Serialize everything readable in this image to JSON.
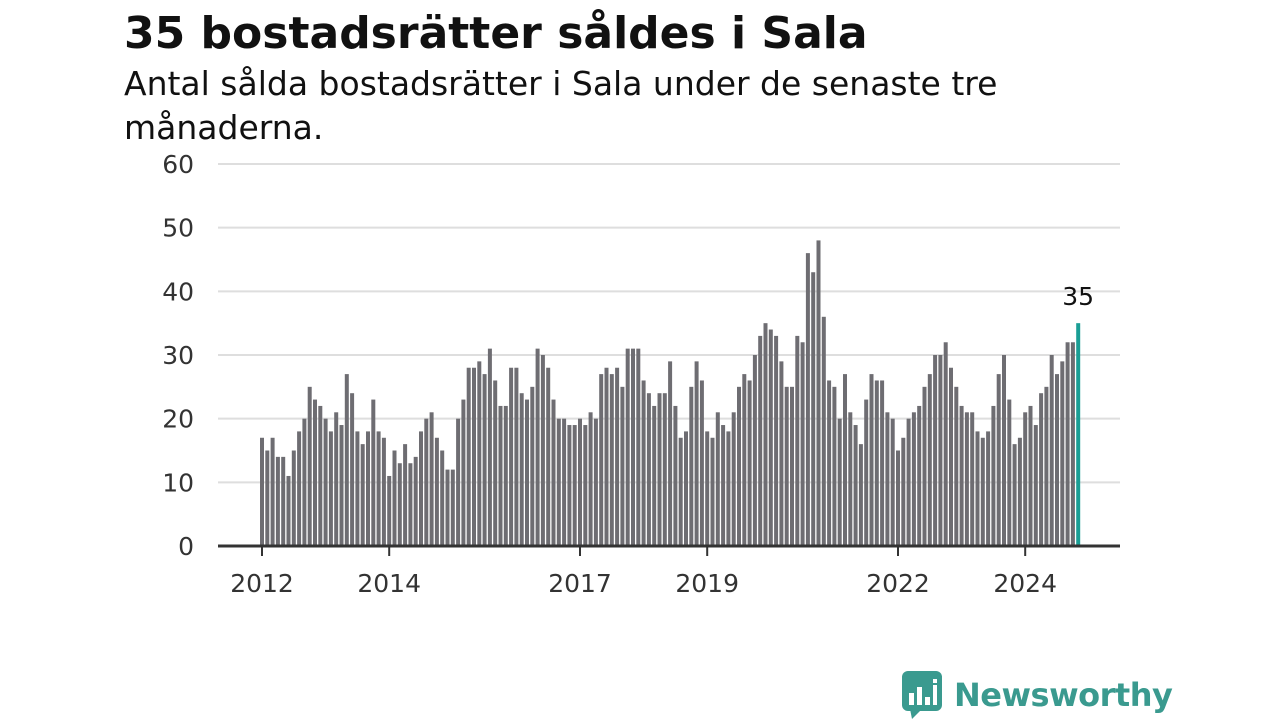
{
  "chart_data": {
    "type": "bar",
    "title": "35 bostadsrätter såldes i Sala",
    "subtitle": "Antal sålda bostadsrätter i Sala under de senaste tre månaderna.",
    "start_year": 2012,
    "x_tick_labels": [
      "2012",
      "2014",
      "2017",
      "2019",
      "2022",
      "2024"
    ],
    "x_tick_years": [
      2012,
      2014,
      2017,
      2019,
      2022,
      2024
    ],
    "ylim": [
      0,
      60
    ],
    "y_ticks": [
      0,
      10,
      20,
      30,
      40,
      50,
      60
    ],
    "grid": true,
    "bar_color": "#6e6d72",
    "highlight_color": "#1a9e95",
    "highlight_label": "35",
    "values": [
      17,
      15,
      17,
      14,
      14,
      11,
      15,
      18,
      20,
      25,
      23,
      22,
      20,
      18,
      21,
      19,
      27,
      24,
      18,
      16,
      18,
      23,
      18,
      17,
      11,
      15,
      13,
      16,
      13,
      14,
      18,
      20,
      21,
      17,
      15,
      12,
      12,
      20,
      23,
      28,
      28,
      29,
      27,
      31,
      26,
      22,
      22,
      28,
      28,
      24,
      23,
      25,
      31,
      30,
      28,
      23,
      20,
      20,
      19,
      19,
      20,
      19,
      21,
      20,
      27,
      28,
      27,
      28,
      25,
      31,
      31,
      31,
      26,
      24,
      22,
      24,
      24,
      29,
      22,
      17,
      18,
      25,
      29,
      26,
      18,
      17,
      21,
      19,
      18,
      21,
      25,
      27,
      26,
      30,
      33,
      35,
      34,
      33,
      29,
      25,
      25,
      33,
      32,
      46,
      43,
      48,
      36,
      26,
      25,
      20,
      27,
      21,
      19,
      16,
      23,
      27,
      26,
      26,
      21,
      20,
      15,
      17,
      20,
      21,
      22,
      25,
      27,
      30,
      30,
      32,
      28,
      25,
      22,
      21,
      21,
      18,
      17,
      18,
      22,
      27,
      30,
      23,
      16,
      17,
      21,
      22,
      19,
      24,
      25,
      30,
      27,
      29,
      32,
      32,
      35
    ]
  },
  "brand": {
    "name": "Newsworthy",
    "icon": "newsworthy-logo-icon",
    "color": "#3a9a8f"
  }
}
